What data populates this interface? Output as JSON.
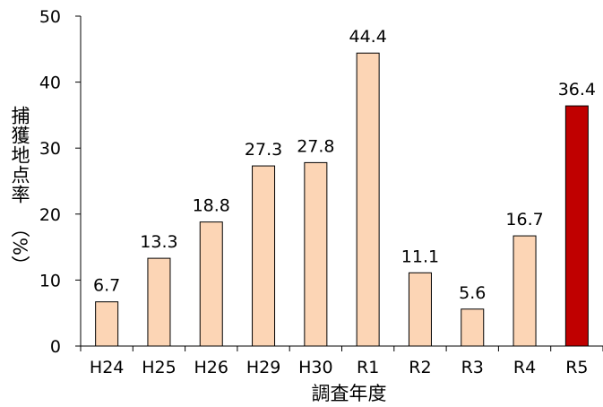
{
  "chart_data": {
    "type": "bar",
    "categories": [
      "H24",
      "H25",
      "H26",
      "H29",
      "H30",
      "R1",
      "R2",
      "R3",
      "R4",
      "R5"
    ],
    "values": [
      6.7,
      13.3,
      18.8,
      27.3,
      27.8,
      44.4,
      11.1,
      5.6,
      16.7,
      36.4
    ],
    "value_labels": [
      "6.7",
      "13.3",
      "18.8",
      "27.3",
      "27.8",
      "44.4",
      "11.1",
      "5.6",
      "16.7",
      "36.4"
    ],
    "xlabel": "調査年度",
    "ylabel_main": "捕獲地点率",
    "ylabel_unit": "（%）",
    "ylim": [
      0,
      50
    ],
    "yticks": [
      0,
      10,
      20,
      30,
      40,
      50
    ],
    "grid": false,
    "colors": {
      "default_bar": "#fcd5b5",
      "highlight_bar": "#c00000",
      "bar_stroke": "#000000"
    },
    "highlight_category": "R5"
  }
}
